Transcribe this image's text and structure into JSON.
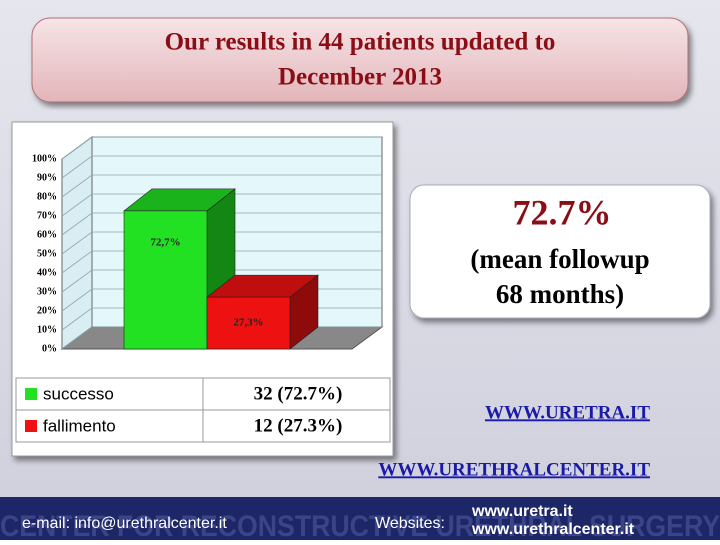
{
  "title_lines": [
    "Our results in 44 patients updated to",
    "December 2013"
  ],
  "highlight": {
    "value_text": "72.7%",
    "lines": [
      "(mean followup",
      "68 months)"
    ]
  },
  "links": [
    "WWW.URETRA.IT",
    "WWW.URETHRALCENTER.IT"
  ],
  "footer": {
    "email": "e-mail: info@urethralcenter.it",
    "websites_label": "Websites:",
    "websites": [
      "www.uretra.it",
      "www.urethralcenter.it"
    ],
    "watermark": "CENTER FOR RECONSTRUCTIVE URETHRAL SURGERY"
  },
  "chart_data": {
    "type": "bar3d",
    "series": [
      {
        "name": "successo",
        "color": "#22e022",
        "values": [
          72.7
        ],
        "value_labels": [
          "72,7%"
        ],
        "table_value": "32 (72.7%)"
      },
      {
        "name": "fallimento",
        "color": "#ee1111",
        "values": [
          27.3
        ],
        "value_labels": [
          "27,3%"
        ],
        "table_value": "12 (27.3%)"
      }
    ],
    "ylim": [
      0,
      100
    ],
    "yticks": [
      {
        "value": 0,
        "label": "0%"
      },
      {
        "value": 10,
        "label": "10%"
      },
      {
        "value": 20,
        "label": "20%"
      },
      {
        "value": 30,
        "label": "30%"
      },
      {
        "value": 40,
        "label": "40%"
      },
      {
        "value": 50,
        "label": "50%"
      },
      {
        "value": 60,
        "label": "60%"
      },
      {
        "value": 70,
        "label": "70%"
      },
      {
        "value": 80,
        "label": "80%"
      },
      {
        "value": 90,
        "label": "90%"
      },
      {
        "value": 100,
        "label": "100%"
      }
    ],
    "grid": true
  }
}
